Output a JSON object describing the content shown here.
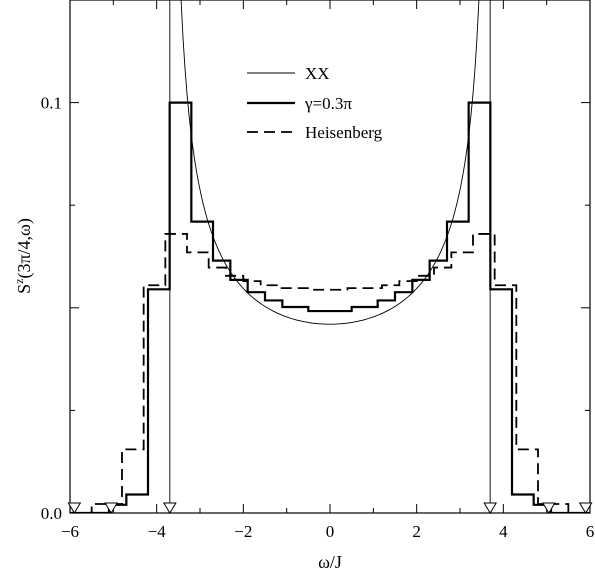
{
  "chart_data": {
    "type": "line",
    "xlabel": "ω/J",
    "ylabel": "S",
    "ylabel_sup": "z",
    "ylabel_args": "(3π/4,ω)",
    "xlim": [
      -6,
      6
    ],
    "ylim": [
      0,
      0.125
    ],
    "x_ticks": [
      -6,
      -4,
      -2,
      0,
      2,
      4,
      6
    ],
    "x_tick_labels": [
      "−6",
      "−4",
      "−2",
      "0",
      "2",
      "4",
      "6"
    ],
    "y_ticks": [
      0.0,
      0.1
    ],
    "y_tick_labels": [
      "0.0",
      "0.1"
    ],
    "legend_placement": "top-center",
    "legend": [
      {
        "label": "XX",
        "style": "thin"
      },
      {
        "label": "γ=0.3π",
        "style": "thick"
      },
      {
        "label": "Heisenberg",
        "style": "dashed"
      }
    ],
    "series": [
      {
        "name": "XX",
        "style": "thin",
        "edges": [
          -3.696,
          3.696
        ],
        "peak": 0.125,
        "center_value": 0.046
      },
      {
        "name": "γ=0.3π",
        "style": "thick",
        "edges": [
          -6.0,
          -5.1,
          -4.7,
          -4.2,
          -3.7,
          -3.2,
          -2.7,
          -2.3,
          -1.9,
          -1.5,
          -1.1,
          -0.5,
          0.5,
          1.1,
          1.5,
          1.9,
          2.3,
          2.7,
          3.2,
          3.7,
          4.2,
          4.7,
          5.1,
          6.0
        ],
        "values": [
          0.0,
          0.002,
          0.0045,
          0.0545,
          0.1,
          0.071,
          0.0615,
          0.0568,
          0.0538,
          0.0518,
          0.0502,
          0.0492,
          0.0502,
          0.0518,
          0.0538,
          0.0568,
          0.0615,
          0.071,
          0.1,
          0.0545,
          0.0045,
          0.002,
          0.0
        ]
      },
      {
        "name": "Heisenberg",
        "style": "dashed",
        "edges": [
          -6.0,
          -5.5,
          -4.8,
          -4.3,
          -3.8,
          -3.3,
          -2.8,
          -2.4,
          -2.0,
          -1.6,
          -1.2,
          -0.4,
          0.4,
          1.2,
          1.6,
          2.0,
          2.4,
          2.8,
          3.3,
          3.8,
          4.3,
          4.8,
          5.5,
          6.0
        ],
        "values": [
          0.0,
          0.0022,
          0.0155,
          0.0555,
          0.068,
          0.0635,
          0.0598,
          0.0578,
          0.0565,
          0.0555,
          0.0548,
          0.0544,
          0.0548,
          0.0555,
          0.0565,
          0.0578,
          0.0598,
          0.0635,
          0.068,
          0.0555,
          0.0155,
          0.0022,
          0.0
        ]
      }
    ],
    "markers": {
      "shape": "down-triangle",
      "x": [
        -5.9,
        -5.05,
        -3.696,
        3.696,
        5.05,
        5.9
      ],
      "y": 0.0
    }
  }
}
